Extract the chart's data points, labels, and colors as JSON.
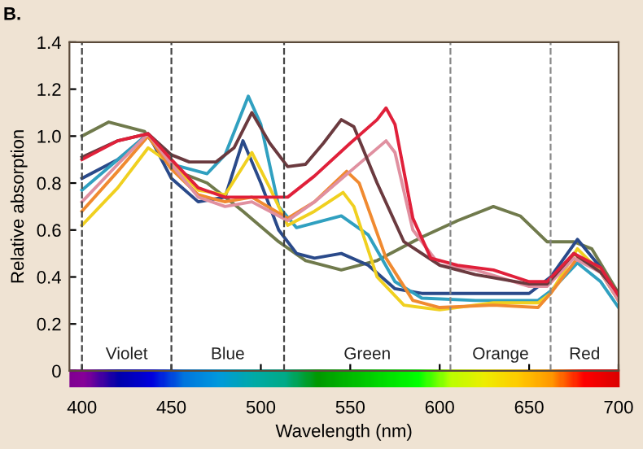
{
  "chart_data": {
    "type": "line",
    "title": "B.",
    "xlabel": "Wavelength (nm)",
    "ylabel": "Relative absorption",
    "xlim": [
      393,
      700
    ],
    "xticks": [
      400,
      450,
      500,
      550,
      600,
      650,
      700
    ],
    "ylim": [
      0,
      1.4
    ],
    "yticks": [
      0,
      0.2,
      0.4,
      0.6,
      0.8,
      {
        "value": 1,
        "label": "1.0"
      },
      1.2,
      1.4
    ],
    "grid": false,
    "marker": "none",
    "line_style": "solid",
    "ref_lines": [
      {
        "axis": "x",
        "value": 400,
        "line_style": "dashed",
        "color": "#444444"
      },
      {
        "axis": "x",
        "value": 450,
        "line_style": "dashed",
        "color": "#444444"
      },
      {
        "axis": "x",
        "value": 513,
        "line_style": "dashed",
        "color": "#444444"
      },
      {
        "axis": "x",
        "value": 606,
        "line_style": "dashed",
        "color": "#888888"
      },
      {
        "axis": "x",
        "value": 662,
        "line_style": "dashed",
        "color": "#888888"
      }
    ],
    "annotations": [
      "Violet",
      "Blue",
      "Green",
      "Orange",
      "Red"
    ],
    "series": [
      {
        "color": "#707a4c",
        "x": [
          400,
          415,
          435,
          450,
          470,
          490,
          510,
          525,
          545,
          565,
          590,
          610,
          630,
          645,
          660,
          675,
          685,
          700
        ],
        "values": [
          1.0,
          1.06,
          1.02,
          0.86,
          0.8,
          0.68,
          0.55,
          0.47,
          0.43,
          0.47,
          0.57,
          0.64,
          0.7,
          0.66,
          0.55,
          0.55,
          0.52,
          0.33
        ]
      },
      {
        "color": "#2a4a8a",
        "x": [
          400,
          420,
          437,
          450,
          465,
          480,
          490,
          500,
          510,
          520,
          530,
          545,
          560,
          575,
          590,
          620,
          650,
          662,
          677,
          690,
          700
        ],
        "values": [
          0.82,
          0.9,
          1.01,
          0.82,
          0.72,
          0.74,
          0.98,
          0.8,
          0.6,
          0.5,
          0.48,
          0.5,
          0.45,
          0.35,
          0.33,
          0.33,
          0.33,
          0.4,
          0.56,
          0.44,
          0.3
        ]
      },
      {
        "color": "#30a0c0",
        "x": [
          400,
          420,
          437,
          450,
          470,
          480,
          493,
          500,
          510,
          520,
          545,
          560,
          575,
          590,
          620,
          655,
          662,
          677,
          690,
          700
        ],
        "values": [
          0.77,
          0.9,
          1.01,
          0.88,
          0.84,
          0.92,
          1.17,
          1.05,
          0.7,
          0.61,
          0.66,
          0.58,
          0.38,
          0.31,
          0.3,
          0.3,
          0.34,
          0.46,
          0.38,
          0.27
        ]
      },
      {
        "color": "#f0d020",
        "x": [
          400,
          420,
          437,
          450,
          465,
          480,
          495,
          505,
          515,
          530,
          546,
          552,
          565,
          580,
          600,
          630,
          655,
          662,
          677,
          690,
          700
        ],
        "values": [
          0.62,
          0.78,
          0.95,
          0.88,
          0.77,
          0.75,
          0.93,
          0.78,
          0.62,
          0.68,
          0.76,
          0.7,
          0.4,
          0.28,
          0.26,
          0.29,
          0.29,
          0.33,
          0.52,
          0.42,
          0.3
        ]
      },
      {
        "color": "#f08a30",
        "x": [
          400,
          420,
          437,
          450,
          465,
          480,
          495,
          515,
          530,
          548,
          555,
          570,
          585,
          600,
          630,
          655,
          662,
          677,
          690,
          700
        ],
        "values": [
          0.68,
          0.85,
          1.0,
          0.86,
          0.75,
          0.72,
          0.74,
          0.65,
          0.72,
          0.85,
          0.8,
          0.48,
          0.3,
          0.27,
          0.28,
          0.27,
          0.33,
          0.48,
          0.42,
          0.3
        ]
      },
      {
        "color": "#e090a0",
        "x": [
          400,
          420,
          437,
          450,
          465,
          480,
          495,
          515,
          530,
          550,
          570,
          575,
          585,
          600,
          620,
          650,
          660,
          675,
          690,
          700
        ],
        "values": [
          0.72,
          0.88,
          1.01,
          0.88,
          0.74,
          0.7,
          0.72,
          0.64,
          0.72,
          0.85,
          0.98,
          0.93,
          0.6,
          0.45,
          0.43,
          0.36,
          0.36,
          0.48,
          0.42,
          0.3
        ]
      },
      {
        "color": "#6b3a3f",
        "x": [
          400,
          420,
          437,
          450,
          460,
          475,
          485,
          495,
          505,
          515,
          525,
          535,
          545,
          552,
          565,
          580,
          600,
          620,
          650,
          660,
          675,
          690,
          700
        ],
        "values": [
          0.91,
          0.98,
          1.01,
          0.92,
          0.89,
          0.89,
          0.95,
          1.1,
          0.97,
          0.87,
          0.88,
          0.97,
          1.07,
          1.04,
          0.8,
          0.55,
          0.45,
          0.41,
          0.37,
          0.37,
          0.5,
          0.42,
          0.33
        ]
      },
      {
        "color": "#e0203a",
        "x": [
          400,
          420,
          437,
          450,
          465,
          480,
          500,
          515,
          530,
          550,
          565,
          570,
          575,
          585,
          595,
          610,
          630,
          650,
          660,
          675,
          690,
          700
        ],
        "values": [
          0.9,
          0.98,
          1.01,
          0.9,
          0.78,
          0.74,
          0.74,
          0.74,
          0.83,
          0.97,
          1.07,
          1.12,
          1.05,
          0.65,
          0.48,
          0.45,
          0.43,
          0.38,
          0.38,
          0.5,
          0.44,
          0.32
        ]
      }
    ]
  }
}
